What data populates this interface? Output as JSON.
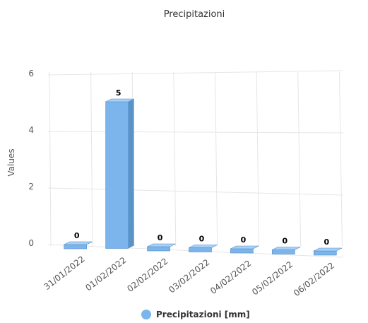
{
  "chart_data": {
    "type": "bar",
    "title": "Precipitazioni",
    "ylabel": "Values",
    "xlabel": "",
    "categories": [
      "31/01/2022",
      "01/02/2022",
      "02/02/2022",
      "03/02/2022",
      "04/02/2022",
      "05/02/2022",
      "06/02/2022"
    ],
    "series": [
      {
        "name": "Precipitazioni [mm]",
        "values": [
          0,
          5,
          0,
          0,
          0,
          0,
          0
        ],
        "color": "#7cb5ec"
      }
    ],
    "ylim": [
      0,
      6
    ],
    "yticks": [
      0,
      2,
      4,
      6
    ],
    "grid": true,
    "legend": "bottom-center",
    "style": "3d"
  }
}
